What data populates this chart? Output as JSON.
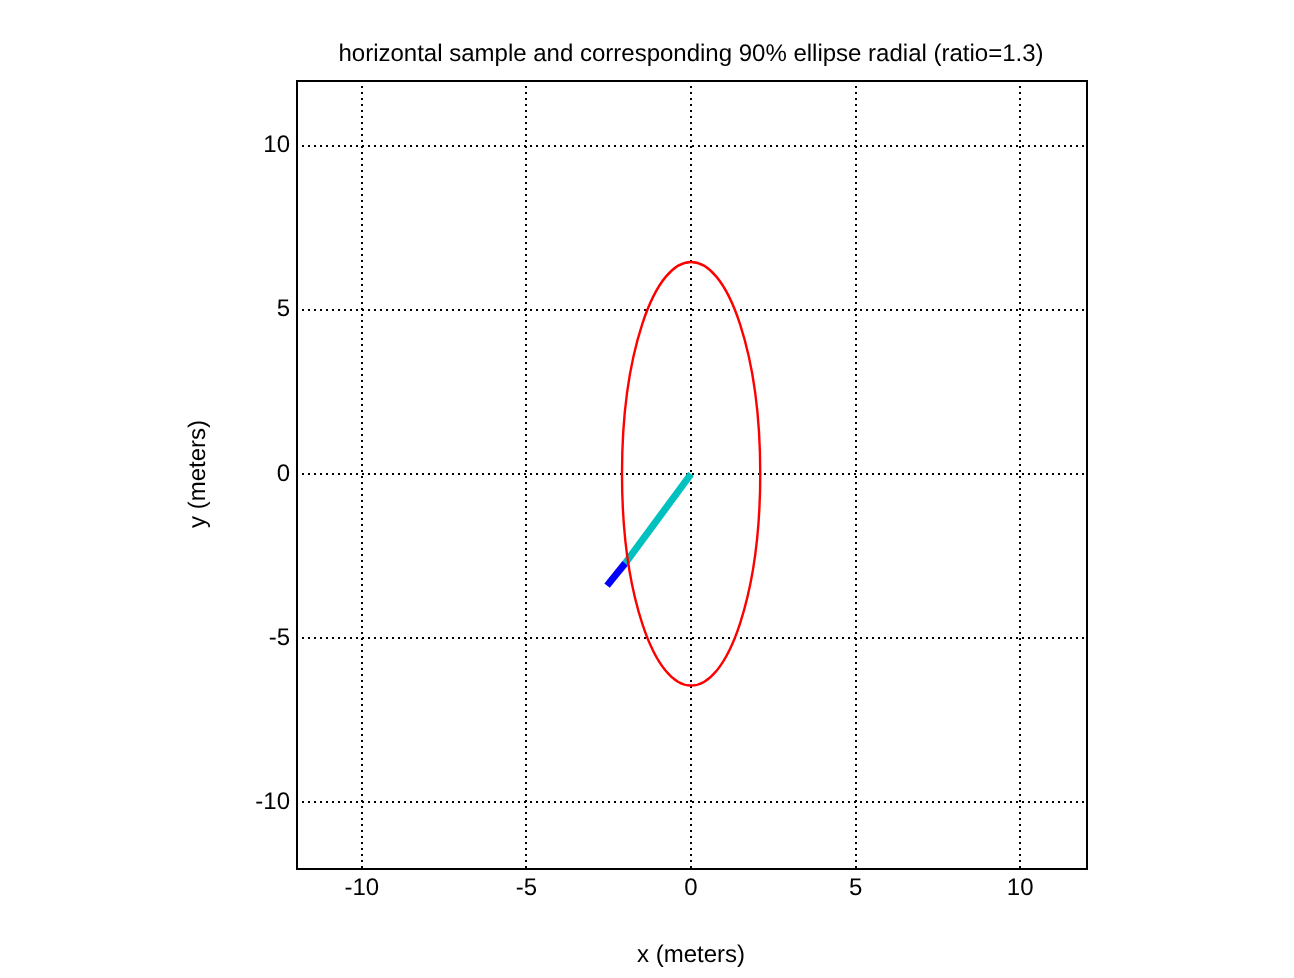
{
  "chart_data": {
    "type": "line",
    "title": "horizontal sample and corresponding 90% ellipse radial (ratio=1.3)",
    "xlabel": "x (meters)",
    "ylabel": "y (meters)",
    "xlim": [
      -12,
      12
    ],
    "ylim": [
      -12,
      12
    ],
    "xticks": [
      -10,
      -5,
      0,
      5,
      10
    ],
    "yticks": [
      -10,
      -5,
      0,
      5,
      10
    ],
    "grid": true,
    "legend": false,
    "marker": "none",
    "line_style": "solid",
    "series": [
      {
        "color": "#0000ff",
        "x": [
          -2.0,
          -2.55
        ],
        "values": [
          -2.72,
          -3.4
        ]
      },
      {
        "color": "#00c0c0",
        "x": [
          0,
          -2.0
        ],
        "values": [
          0,
          -2.72
        ]
      }
    ]
  }
}
